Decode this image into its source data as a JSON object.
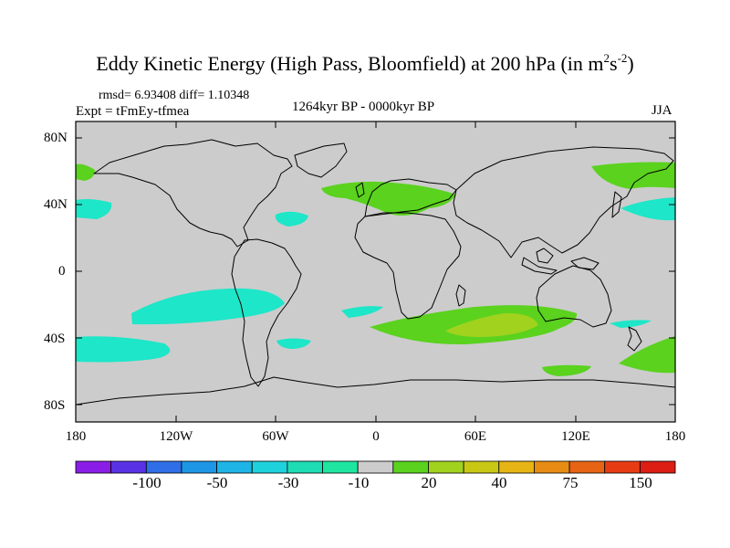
{
  "title": {
    "main": "Eddy Kinetic Energy (High Pass, Bloomfield) at 200 hPa (in m",
    "sup1": "2",
    "s": "s",
    "sup2": "-2",
    "close": ")"
  },
  "stats": "rmsd= 6.93408  diff= 1.10348",
  "expt": "Expt = tFmEy-tfmea",
  "period": "1264kyr BP - 0000kyr BP",
  "season": "JJA",
  "lat_labels": [
    "80N",
    "40N",
    "0",
    "40S",
    "80S"
  ],
  "lon_labels": [
    "180",
    "120W",
    "60W",
    "0",
    "60E",
    "120E",
    "180"
  ],
  "colorbar": {
    "labels": [
      "-100",
      "-50",
      "-30",
      "-10",
      "20",
      "40",
      "75",
      "150"
    ],
    "colors": [
      "#8a1ee6",
      "#5a32e6",
      "#2f6ee6",
      "#1e96e6",
      "#1eb4e6",
      "#1ed2dc",
      "#1edcb4",
      "#1ee6a0",
      "#cccccc",
      "#5ad21e",
      "#a0d21e",
      "#c8c814",
      "#e6b414",
      "#e68c14",
      "#e66414",
      "#e63c14",
      "#dc1e14"
    ]
  },
  "colors": {
    "ocean_background": "#cccccc",
    "negative_anomaly": "#1ee6c8",
    "positive_anomaly": "#5ad21e",
    "strong_positive": "#a0d21e"
  }
}
